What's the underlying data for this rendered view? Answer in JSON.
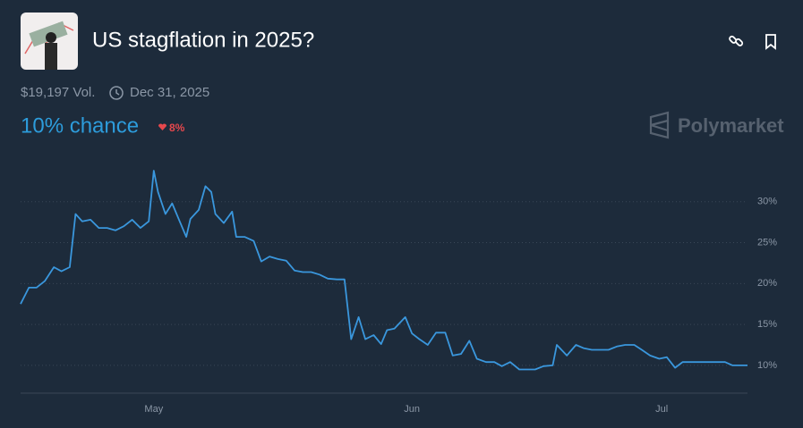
{
  "header": {
    "title": "US stagflation in 2025?",
    "volume": "$19,197 Vol.",
    "end_date": "Dec 31, 2025",
    "chance": "10% chance",
    "change": "8%",
    "brand": "Polymarket"
  },
  "chart_data": {
    "type": "line",
    "x": [
      105,
      106,
      106.9,
      107.9,
      109,
      109.9,
      110.9,
      111.6,
      112.4,
      113.4,
      114.4,
      115.4,
      116.4,
      117.4,
      118.4,
      119.4,
      120.4,
      121,
      121.5,
      122.4,
      123.2,
      124.1,
      124.9,
      125.4,
      126.4,
      127.2,
      127.9,
      128.4,
      129.4,
      130.4,
      130.9,
      131.9,
      133,
      133.9,
      134.9,
      135.9,
      136.9,
      137.9,
      138.9,
      139.9,
      140.9,
      141.9,
      143,
      143.9,
      144.7,
      145.6,
      146.4,
      147.4,
      148.3,
      149,
      149.9,
      151.2,
      152,
      152.9,
      153.9,
      154.9,
      156,
      156.9,
      157.9,
      158.9,
      159.8,
      160.9,
      161.9,
      162.8,
      163.8,
      164.9,
      165.9,
      166.8,
      167.8,
      168.9,
      169.4,
      170.6,
      171.7,
      172.6,
      173.6,
      174.6,
      175.6,
      176.6,
      177.6,
      178.7,
      179.6,
      180.6,
      181.7,
      182.6,
      183.6,
      184.5,
      185.6,
      186.6,
      187.6,
      188.5,
      189.6,
      190.5,
      192.3
    ],
    "series": [
      {
        "color": "#3a97dd",
        "values": [
          17.5,
          19.5,
          19.5,
          20.3,
          22,
          21.5,
          22,
          28.5,
          27.6,
          27.8,
          26.8,
          26.8,
          26.5,
          27,
          27.8,
          26.8,
          27.6,
          33.8,
          31.2,
          28.5,
          29.8,
          27.6,
          25.7,
          27.9,
          29,
          31.9,
          31.2,
          28.5,
          27.4,
          28.8,
          25.7,
          25.7,
          25.2,
          22.7,
          23.3,
          23,
          22.8,
          21.6,
          21.4,
          21.4,
          21.1,
          20.6,
          20.5,
          20.5,
          13.2,
          15.9,
          13.2,
          13.7,
          12.6,
          14.3,
          14.5,
          15.9,
          13.9,
          13.2,
          12.5,
          14,
          14,
          11.2,
          11.4,
          13,
          10.8,
          10.4,
          10.4,
          9.9,
          10.4,
          9.5,
          9.5,
          9.5,
          9.9,
          10,
          12.5,
          11.2,
          12.5,
          12.1,
          11.9,
          11.9,
          11.9,
          12.3,
          12.5,
          12.5,
          11.9,
          11.2,
          10.8,
          11,
          9.7,
          10.4,
          10.4,
          10.4,
          10.4,
          10.4,
          10.4,
          10,
          10
        ]
      }
    ],
    "xlim": [
      105,
      192.3
    ],
    "xticks": [
      {
        "value": 121,
        "label": "May"
      },
      {
        "value": 152,
        "label": "Jun"
      },
      {
        "value": 182,
        "label": "Jul"
      }
    ],
    "ylim": [
      6.6,
      35
    ],
    "yticks": [
      {
        "value": 10,
        "label": "10%"
      },
      {
        "value": 15,
        "label": "15%"
      },
      {
        "value": 20,
        "label": "20%"
      },
      {
        "value": 25,
        "label": "25%"
      },
      {
        "value": 30,
        "label": "30%"
      }
    ],
    "grid": true
  }
}
